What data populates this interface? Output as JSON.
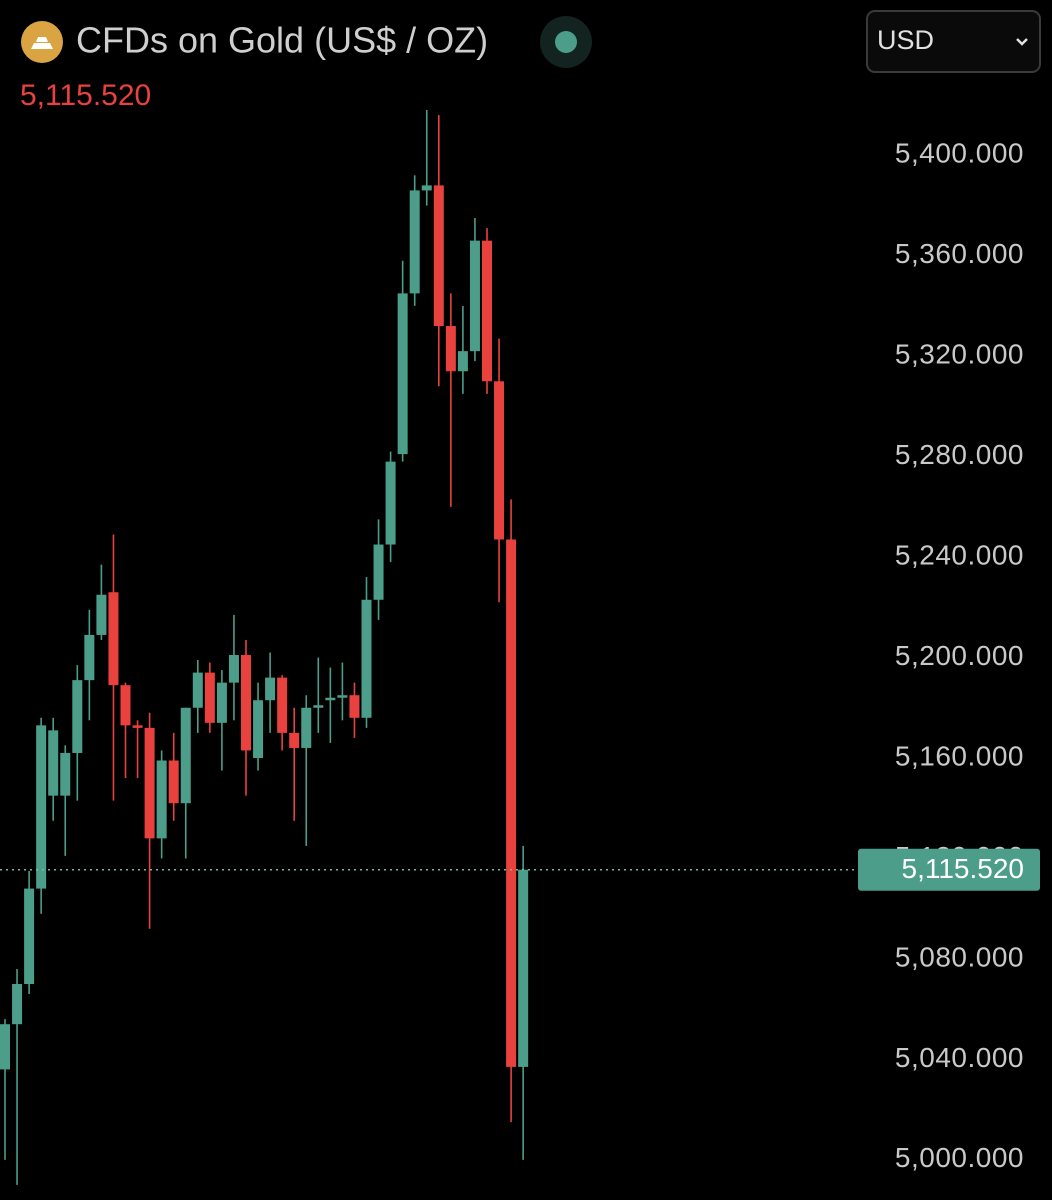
{
  "chart_data": {
    "type": "candlestick",
    "title": "CFDs on Gold (US$ / OZ)",
    "currency": "USD",
    "up_color": "#4c9e8a",
    "down_color": "#e8413e",
    "ylim": [
      4984,
      5422
    ],
    "yticks": [
      {
        "value": 5000,
        "label": "5,000.000"
      },
      {
        "value": 5040,
        "label": "5,040.000"
      },
      {
        "value": 5080,
        "label": "5,080.000"
      },
      {
        "value": 5120,
        "label": "5,120.000"
      },
      {
        "value": 5160,
        "label": "5,160.000"
      },
      {
        "value": 5200,
        "label": "5,200.000"
      },
      {
        "value": 5240,
        "label": "5,240.000"
      },
      {
        "value": 5280,
        "label": "5,280.000"
      },
      {
        "value": 5320,
        "label": "5,320.000"
      },
      {
        "value": 5360,
        "label": "5,360.000"
      },
      {
        "value": 5400,
        "label": "5,400.000"
      }
    ],
    "price_line": {
      "value": 5115.52,
      "label": "5,115.520"
    },
    "open": [
      5036,
      5054,
      5070,
      5108,
      5145,
      5145,
      5162,
      5191,
      5209,
      5226,
      5189,
      5173,
      5172,
      5128,
      5159,
      5142,
      5180,
      5194,
      5174,
      5190,
      5201,
      5160,
      5183,
      5192,
      5170,
      5164,
      5180,
      5183,
      5184,
      5185,
      5176,
      5223,
      5245,
      5281,
      5345,
      5386,
      5388,
      5332,
      5314,
      5322,
      5366,
      5310,
      5247,
      5037
    ],
    "high": [
      5056,
      5076,
      5115,
      5176,
      5176,
      5165,
      5197,
      5219,
      5237,
      5249,
      5190,
      5175,
      5178,
      5163,
      5170,
      5180,
      5199,
      5198,
      5195,
      5217,
      5207,
      5190,
      5202,
      5193,
      5180,
      5185,
      5200,
      5196,
      5198,
      5190,
      5232,
      5255,
      5282,
      5358,
      5392,
      5418,
      5416,
      5345,
      5340,
      5375,
      5371,
      5327,
      5263,
      5125
    ],
    "low": [
      5000,
      4990,
      5066,
      5098,
      5135,
      5121,
      5143,
      5175,
      5207,
      5143,
      5152,
      5152,
      5092,
      5120,
      5135,
      5120,
      5170,
      5170,
      5155,
      5175,
      5145,
      5155,
      5170,
      5163,
      5135,
      5125,
      5170,
      5166,
      5175,
      5168,
      5172,
      5215,
      5238,
      5278,
      5340,
      5380,
      5308,
      5260,
      5305,
      5318,
      5305,
      5222,
      5015,
      5000
    ],
    "close": [
      5054,
      5070,
      5108,
      5173,
      5171,
      5162,
      5191,
      5209,
      5225,
      5189,
      5173,
      5172,
      5128,
      5159,
      5142,
      5180,
      5194,
      5174,
      5190,
      5201,
      5163,
      5183,
      5192,
      5170,
      5164,
      5180,
      5181,
      5184,
      5185,
      5176,
      5223,
      5245,
      5278,
      5345,
      5386,
      5388,
      5332,
      5314,
      5322,
      5366,
      5310,
      5247,
      5037,
      5115.52
    ]
  }
}
